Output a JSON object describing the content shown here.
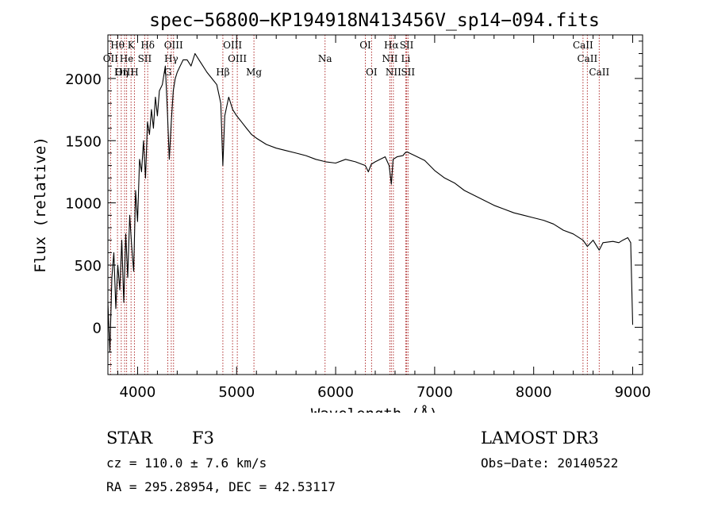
{
  "chart_data": {
    "type": "line",
    "title": "spec−56800−KP194918N413456V_sp14−094.fits",
    "xlabel": "Wavelength (Å)",
    "ylabel": "Flux (relative)",
    "xlim": [
      3700,
      9100
    ],
    "ylim": [
      -380,
      2350
    ],
    "xticks": [
      4000,
      5000,
      6000,
      7000,
      8000,
      9000
    ],
    "yticks": [
      0,
      500,
      1000,
      1500,
      2000
    ],
    "series": [
      {
        "name": "flux",
        "x": [
          3700,
          3720,
          3740,
          3760,
          3780,
          3800,
          3820,
          3840,
          3860,
          3880,
          3900,
          3920,
          3940,
          3960,
          3980,
          4000,
          4020,
          4040,
          4060,
          4080,
          4100,
          4120,
          4140,
          4160,
          4180,
          4200,
          4220,
          4250,
          4280,
          4300,
          4320,
          4340,
          4360,
          4380,
          4400,
          4430,
          4460,
          4500,
          4540,
          4580,
          4620,
          4660,
          4700,
          4750,
          4800,
          4840,
          4861,
          4880,
          4920,
          4960,
          5000,
          5050,
          5100,
          5150,
          5200,
          5300,
          5400,
          5500,
          5600,
          5700,
          5800,
          5900,
          6000,
          6100,
          6200,
          6300,
          6330,
          6360,
          6400,
          6450,
          6500,
          6540,
          6563,
          6580,
          6620,
          6680,
          6700,
          6720,
          6800,
          6900,
          7000,
          7100,
          7200,
          7300,
          7400,
          7500,
          7600,
          7700,
          7800,
          7900,
          8000,
          8100,
          8200,
          8300,
          8400,
          8498,
          8542,
          8600,
          8662,
          8700,
          8800,
          8860,
          8900,
          8950,
          8980,
          9000
        ],
        "y": [
          200,
          -200,
          400,
          600,
          150,
          500,
          300,
          700,
          200,
          750,
          400,
          900,
          650,
          450,
          1100,
          850,
          1350,
          1250,
          1500,
          1200,
          1650,
          1550,
          1750,
          1600,
          1850,
          1700,
          1900,
          1950,
          2100,
          1750,
          1350,
          1650,
          1900,
          2000,
          2050,
          2100,
          2150,
          2150,
          2100,
          2200,
          2150,
          2100,
          2050,
          2000,
          1950,
          1800,
          1300,
          1700,
          1850,
          1750,
          1700,
          1650,
          1600,
          1550,
          1520,
          1470,
          1440,
          1420,
          1400,
          1380,
          1350,
          1330,
          1320,
          1350,
          1330,
          1300,
          1250,
          1310,
          1330,
          1350,
          1370,
          1300,
          1150,
          1350,
          1370,
          1380,
          1400,
          1410,
          1380,
          1340,
          1260,
          1200,
          1160,
          1100,
          1060,
          1020,
          980,
          950,
          920,
          900,
          880,
          860,
          830,
          780,
          750,
          700,
          650,
          700,
          620,
          680,
          690,
          680,
          700,
          720,
          680,
          20
        ]
      }
    ],
    "spectral_lines": [
      {
        "label": "Hθ",
        "wl": 3797,
        "row": 1
      },
      {
        "label": "OII",
        "wl": 3727,
        "row": 2
      },
      {
        "label": "OIII",
        "wl": 3869,
        "row": 3
      },
      {
        "label": "He",
        "wl": 3889,
        "row": 2
      },
      {
        "label": "Hη",
        "wl": 3835,
        "row": 3
      },
      {
        "label": "K",
        "wl": 3934,
        "row": 1
      },
      {
        "label": "SII",
        "wl": 4072,
        "row": 2
      },
      {
        "label": "H",
        "wl": 3968,
        "row": 3
      },
      {
        "label": "Hδ",
        "wl": 4102,
        "row": 1
      },
      {
        "label": "OIII",
        "wl": 4363,
        "row": 1
      },
      {
        "label": "Hγ",
        "wl": 4340,
        "row": 2
      },
      {
        "label": "G",
        "wl": 4305,
        "row": 3
      },
      {
        "label": "Hβ",
        "wl": 4861,
        "row": 3
      },
      {
        "label": "OIII",
        "wl": 4959,
        "row": 1
      },
      {
        "label": "OIII",
        "wl": 5007,
        "row": 2
      },
      {
        "label": "Mg",
        "wl": 5175,
        "row": 3
      },
      {
        "label": "Na",
        "wl": 5893,
        "row": 2
      },
      {
        "label": "OI",
        "wl": 6300,
        "row": 1
      },
      {
        "label": "OI",
        "wl": 6363,
        "row": 3
      },
      {
        "label": "Hα",
        "wl": 6563,
        "row": 1
      },
      {
        "label": "NII",
        "wl": 6548,
        "row": 2
      },
      {
        "label": "NII",
        "wl": 6583,
        "row": 3
      },
      {
        "label": "SII",
        "wl": 6717,
        "row": 1
      },
      {
        "label": "Li",
        "wl": 6708,
        "row": 2
      },
      {
        "label": "SII",
        "wl": 6731,
        "row": 3
      },
      {
        "label": "CaII",
        "wl": 8498,
        "row": 1
      },
      {
        "label": "CaII",
        "wl": 8542,
        "row": 2
      },
      {
        "label": "CaII",
        "wl": 8662,
        "row": 3
      }
    ]
  },
  "info": {
    "class_label": "STAR",
    "subclass": "F3",
    "survey": "LAMOST DR3",
    "cz": "cz = 110.0 ± 7.6 km/s",
    "obs_date": "Obs−Date: 20140522",
    "coords": "RA = 295.28954, DEC =  42.53117"
  }
}
